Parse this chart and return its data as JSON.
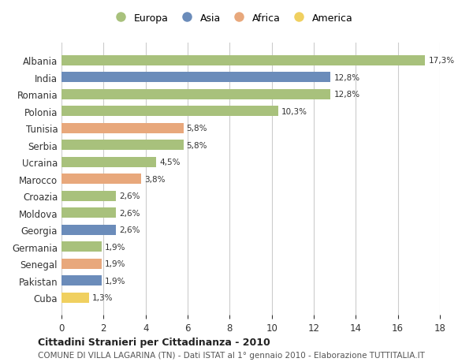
{
  "categories": [
    "Albania",
    "India",
    "Romania",
    "Polonia",
    "Tunisia",
    "Serbia",
    "Ucraina",
    "Marocco",
    "Croazia",
    "Moldova",
    "Georgia",
    "Germania",
    "Senegal",
    "Pakistan",
    "Cuba"
  ],
  "values": [
    17.3,
    12.8,
    12.8,
    10.3,
    5.8,
    5.8,
    4.5,
    3.8,
    2.6,
    2.6,
    2.6,
    1.9,
    1.9,
    1.9,
    1.3
  ],
  "labels": [
    "17,3%",
    "12,8%",
    "12,8%",
    "10,3%",
    "5,8%",
    "5,8%",
    "4,5%",
    "3,8%",
    "2,6%",
    "2,6%",
    "2,6%",
    "1,9%",
    "1,9%",
    "1,9%",
    "1,3%"
  ],
  "continents": [
    "Europa",
    "Asia",
    "Europa",
    "Europa",
    "Africa",
    "Europa",
    "Europa",
    "Africa",
    "Europa",
    "Europa",
    "Asia",
    "Europa",
    "Africa",
    "Asia",
    "America"
  ],
  "continent_colors": {
    "Europa": "#a8c17c",
    "Asia": "#6b8cba",
    "Africa": "#e8a87c",
    "America": "#f0d060"
  },
  "legend_order": [
    "Europa",
    "Asia",
    "Africa",
    "America"
  ],
  "title": "Cittadini Stranieri per Cittadinanza - 2010",
  "subtitle": "COMUNE DI VILLA LAGARINA (TN) - Dati ISTAT al 1° gennaio 2010 - Elaborazione TUTTITALIA.IT",
  "xlim": [
    0,
    18
  ],
  "xticks": [
    0,
    2,
    4,
    6,
    8,
    10,
    12,
    14,
    16,
    18
  ],
  "bg_color": "#ffffff",
  "grid_color": "#cccccc",
  "bar_height": 0.6
}
